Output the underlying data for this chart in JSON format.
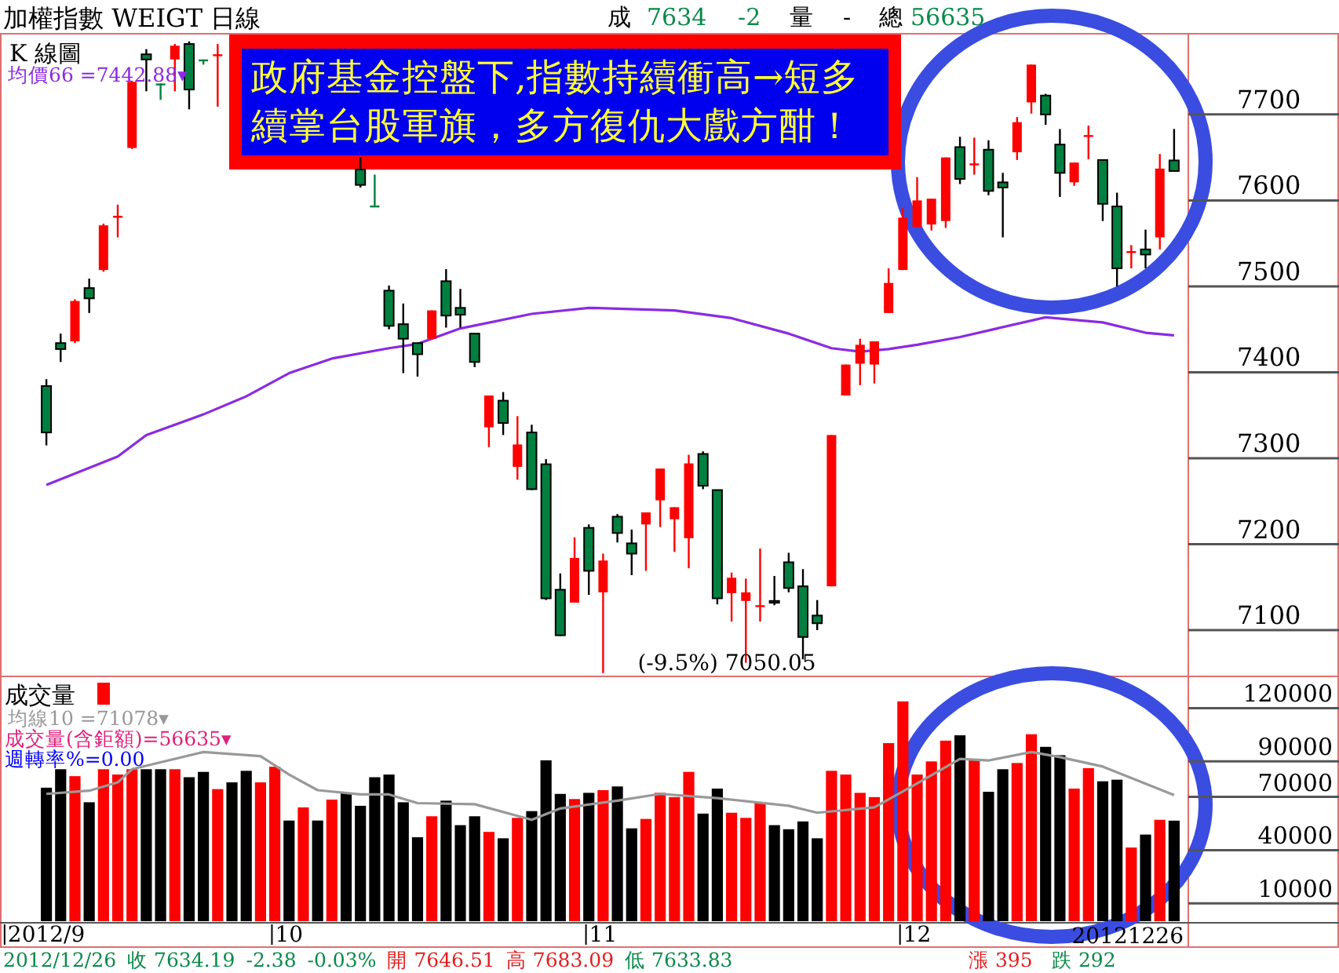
{
  "chart_data": [
    {
      "type": "candlestick",
      "title": "加權指數  WEIGT  日線",
      "subtitle": "K 線圖",
      "categories": [
        null,
        null,
        null,
        null,
        null,
        null,
        null,
        null,
        null,
        null,
        null,
        null,
        null,
        null,
        null,
        null,
        null,
        null,
        null,
        null,
        null,
        null,
        null,
        null,
        null,
        null,
        null,
        null,
        null,
        null,
        null,
        null,
        null,
        null,
        null,
        null,
        null,
        null,
        null,
        null,
        null,
        null,
        null,
        null,
        null,
        null,
        null,
        null,
        null,
        null,
        null,
        null,
        null,
        null,
        null,
        null,
        null,
        null,
        null,
        null,
        null,
        null,
        null,
        null,
        null,
        null,
        null,
        null,
        null,
        null,
        null,
        null,
        null,
        null,
        null,
        null,
        null,
        null,
        null,
        null
      ],
      "ohlc": [
        [
          7384,
          7392,
          7315,
          7330
        ],
        [
          7434,
          7445,
          7412,
          7427
        ],
        [
          7436,
          7485,
          7434,
          7483
        ],
        [
          7498,
          7509,
          7469,
          7486
        ],
        [
          7519,
          7573,
          7517,
          7571
        ],
        [
          7581,
          7595,
          7557,
          7582
        ],
        [
          7661,
          7739,
          7660,
          7738
        ],
        [
          7770,
          7776,
          7727,
          7764
        ],
        [
          7736,
          7736,
          7717,
          7736
        ],
        [
          7764,
          7782,
          7727,
          7780
        ],
        [
          7782,
          7785,
          7706,
          7729
        ],
        [
          7764,
          7764,
          7758,
          7764
        ],
        [
          7768,
          7782,
          7709,
          7770
        ],
        null,
        null,
        null,
        null,
        null,
        null,
        null,
        null,
        null,
        [
          7636,
          7650,
          7615,
          7618
        ],
        [
          7594,
          7630,
          7594,
          7594
        ],
        [
          7495,
          7501,
          7450,
          7454
        ],
        [
          7456,
          7480,
          7399,
          7439
        ],
        [
          7434,
          7434,
          7395,
          7421
        ],
        [
          7439,
          7472,
          7439,
          7472
        ],
        [
          7506,
          7520,
          7452,
          7466
        ],
        [
          7475,
          7497,
          7452,
          7467
        ],
        [
          7445,
          7445,
          7406,
          7412
        ],
        [
          7336,
          7373,
          7313,
          7373
        ],
        [
          7367,
          7377,
          7327,
          7341
        ],
        [
          7290,
          7349,
          7275,
          7316
        ],
        [
          7330,
          7339,
          7263,
          7264
        ],
        [
          7293,
          7299,
          7135,
          7137
        ],
        [
          7147,
          7166,
          7093,
          7094
        ],
        [
          7132,
          7208,
          7132,
          7184
        ],
        [
          7219,
          7223,
          7141,
          7169
        ],
        [
          7144,
          7189,
          7050.05,
          7181
        ],
        [
          7232,
          7235,
          7202,
          7213
        ],
        [
          7201,
          7217,
          7164,
          7189
        ],
        [
          7223,
          7237,
          7169,
          7237
        ],
        [
          7251,
          7288,
          7220,
          7288
        ],
        [
          7229,
          7243,
          7191,
          7243
        ],
        [
          7207,
          7304,
          7172,
          7294
        ],
        [
          7305,
          7308,
          7264,
          7268
        ],
        [
          7263,
          7263,
          7130,
          7137
        ],
        [
          7143,
          7167,
          7110,
          7161
        ],
        [
          7134,
          7160,
          7062,
          7144
        ],
        [
          7127,
          7195,
          7110,
          7129
        ],
        [
          7134,
          7163,
          7129,
          7132
        ],
        [
          7179,
          7190,
          7144,
          7149
        ],
        [
          7151,
          7171,
          7066,
          7092
        ],
        [
          7117,
          7135,
          7100,
          7108
        ],
        [
          7151,
          7327,
          7151,
          7327
        ],
        [
          7373,
          7409,
          7373,
          7409
        ],
        [
          7410,
          7439,
          7385,
          7432
        ],
        [
          7409,
          7436,
          7387,
          7436
        ],
        [
          7469,
          7521,
          7469,
          7504
        ],
        [
          7519,
          7591,
          7519,
          7580
        ],
        [
          7569,
          7627,
          7569,
          7600
        ],
        [
          7572,
          7602,
          7565,
          7602
        ],
        [
          7576,
          7650,
          7568,
          7650
        ],
        [
          7662,
          7674,
          7619,
          7625
        ],
        [
          7641,
          7673,
          7630,
          7643
        ],
        [
          7659,
          7670,
          7606,
          7611
        ],
        [
          7621,
          7632,
          7557,
          7615
        ],
        [
          7656,
          7697,
          7647,
          7691
        ],
        [
          7714,
          7758,
          7701,
          7758
        ],
        [
          7722,
          7724,
          7688,
          7700
        ],
        [
          7665,
          7683,
          7604,
          7632
        ],
        [
          7621,
          7644,
          7617,
          7644
        ],
        [
          7674,
          7687,
          7648,
          7676
        ],
        [
          7647,
          7647,
          7576,
          7596
        ],
        [
          7593,
          7609,
          7500,
          7521
        ],
        [
          7539,
          7548,
          7521,
          7541
        ],
        [
          7543,
          7566,
          7521,
          7537
        ],
        [
          7557,
          7654,
          7543,
          7637
        ],
        [
          7646.51,
          7683.09,
          7633.83,
          7634.19
        ]
      ],
      "colors": [
        "#008040",
        "#008040",
        "#ff0000",
        "#008040",
        "#ff0000",
        "#ff0000",
        "#ff0000",
        "#008040",
        "#008040",
        "#ff0000",
        "#008040",
        "#008040",
        "#ff0000",
        null,
        null,
        null,
        null,
        null,
        null,
        null,
        null,
        null,
        "#008040",
        "#008040",
        "#008040",
        "#008040",
        "#008040",
        "#ff0000",
        "#008040",
        "#008040",
        "#008040",
        "#ff0000",
        "#008040",
        "#ff0000",
        "#008040",
        "#008040",
        "#008040",
        "#ff0000",
        "#008040",
        "#ff0000",
        "#008040",
        "#008040",
        "#ff0000",
        "#ff0000",
        "#ff0000",
        "#ff0000",
        "#008040",
        "#008040",
        "#ff0000",
        "#ff0000",
        "#ff0000",
        "#008040",
        "#008040",
        "#008040",
        "#008040",
        "#ff0000",
        "#ff0000",
        "#ff0000",
        "#ff0000",
        "#ff0000",
        "#ff0000",
        "#ff0000",
        "#ff0000",
        "#ff0000",
        "#008040",
        "#ff0000",
        "#008040",
        "#008040",
        "#ff0000",
        "#ff0000",
        "#008040",
        "#008040",
        "#ff0000",
        "#ff0000",
        "#008040",
        "#008040",
        "#ff0000",
        "#008040",
        "#ff0000",
        "#008040"
      ],
      "series": [
        {
          "name": "均價66 =7442.88▾",
          "type": "line",
          "color": "#8a2be2",
          "values": [
            7269,
            null,
            null,
            null,
            null,
            7302,
            null,
            7327,
            null,
            null,
            null,
            7351,
            null,
            null,
            7372,
            null,
            null,
            7399,
            null,
            null,
            7416,
            null,
            null,
            null,
            7428,
            null,
            7433,
            null,
            null,
            7451,
            null,
            null,
            null,
            null,
            7468,
            null,
            null,
            null,
            7475,
            null,
            null,
            null,
            null,
            null,
            7472,
            null,
            null,
            null,
            7463,
            null,
            null,
            null,
            7445,
            null,
            null,
            7428,
            null,
            7424,
            null,
            7427,
            null,
            7432,
            null,
            null,
            7441,
            null,
            null,
            null,
            null,
            null,
            7464,
            null,
            null,
            null,
            7458,
            null,
            null,
            7446,
            null,
            7443
          ]
        }
      ],
      "ylim": [
        7048,
        7793
      ],
      "yticks": [
        7100,
        7200,
        7300,
        7400,
        7500,
        7600,
        7700
      ],
      "tick_labels": "y",
      "legend": "top left",
      "annotations": [
        "成",
        "7634",
        "-2",
        "量",
        "-",
        "總",
        "56635",
        "政府基金控盤下,指數持續衝高→短多續掌台股軍旗，多方復仇大戲方酣！",
        "(-9.5%) 7050.05"
      ]
    },
    {
      "type": "bar",
      "title": "成交量",
      "categories": [
        "2012/9",
        null,
        null,
        null,
        null,
        null,
        null,
        null,
        null,
        null,
        null,
        null,
        null,
        null,
        null,
        null,
        null,
        "10",
        null,
        null,
        null,
        null,
        null,
        null,
        null,
        null,
        null,
        null,
        null,
        null,
        null,
        null,
        null,
        null,
        null,
        null,
        null,
        null,
        null,
        "11",
        null,
        null,
        null,
        null,
        null,
        null,
        null,
        null,
        null,
        null,
        null,
        null,
        null,
        null,
        null,
        null,
        null,
        null,
        null,
        null,
        null,
        "12",
        null,
        null,
        null,
        null,
        null,
        null,
        null,
        null,
        null,
        null,
        null,
        null,
        null,
        null,
        null,
        null,
        null,
        null
      ],
      "series": [
        {
          "color": "#ff0000",
          "values": [
            75200,
            85600,
            81700,
            67000,
            85600,
            82600,
            85600,
            85600,
            85600,
            85600,
            81100,
            84100,
            74400,
            78200,
            84700,
            78200,
            87000,
            56700,
            64100,
            56700,
            68500,
            72300,
            65000,
            81100,
            82600,
            67000,
            47300,
            59100,
            67900,
            54100,
            59100,
            50300,
            46700,
            58200,
            62000,
            90600,
            71700,
            68800,
            72300,
            73800,
            75900,
            52300,
            57600,
            72300,
            69900,
            84100,
            60600,
            74700,
            61100,
            58200,
            67000,
            54100,
            51800,
            56200,
            46700,
            84700,
            82600,
            72300,
            69900,
            100300,
            123800,
            82600,
            90000,
            101700,
            104700,
            91400,
            72900,
            85600,
            89100,
            105300,
            98200,
            93500,
            74700,
            86200,
            78800,
            79700,
            41500,
            48800,
            57100,
            56635
          ],
          "colors": [
            "#000000",
            "#000000",
            "#ff0000",
            "#000000",
            "#ff0000",
            "#ff0000",
            "#ff0000",
            "#000000",
            "#000000",
            "#ff0000",
            "#000000",
            "#000000",
            "#ff0000",
            "#000000",
            "#000000",
            "#ff0000",
            "#ff0000",
            "#000000",
            "#ff0000",
            "#000000",
            "#ff0000",
            "#000000",
            "#000000",
            "#000000",
            "#000000",
            "#000000",
            "#000000",
            "#ff0000",
            "#000000",
            "#000000",
            "#000000",
            "#ff0000",
            "#000000",
            "#ff0000",
            "#000000",
            "#000000",
            "#000000",
            "#ff0000",
            "#000000",
            "#ff0000",
            "#000000",
            "#000000",
            "#ff0000",
            "#ff0000",
            "#ff0000",
            "#ff0000",
            "#000000",
            "#000000",
            "#ff0000",
            "#ff0000",
            "#ff0000",
            "#000000",
            "#000000",
            "#000000",
            "#000000",
            "#ff0000",
            "#ff0000",
            "#ff0000",
            "#ff0000",
            "#ff0000",
            "#ff0000",
            "#ff0000",
            "#ff0000",
            "#ff0000",
            "#000000",
            "#ff0000",
            "#000000",
            "#000000",
            "#ff0000",
            "#ff0000",
            "#000000",
            "#000000",
            "#ff0000",
            "#ff0000",
            "#000000",
            "#000000",
            "#ff0000",
            "#000000",
            "#ff0000",
            "#000000"
          ]
        },
        {
          "name": "均線10 =71078▾",
          "type": "line",
          "color": "#999999",
          "values": [
            71700,
            null,
            null,
            73500,
            null,
            78200,
            85600,
            null,
            null,
            null,
            null,
            95300,
            null,
            null,
            null,
            93000,
            null,
            82600,
            null,
            73800,
            null,
            null,
            71400,
            null,
            71400,
            null,
            66500,
            null,
            null,
            null,
            65900,
            null,
            null,
            null,
            57100,
            null,
            63500,
            null,
            null,
            null,
            67900,
            null,
            null,
            71700,
            null,
            null,
            null,
            69300,
            null,
            null,
            null,
            null,
            65000,
            null,
            61100,
            null,
            null,
            null,
            64100,
            null,
            null,
            77600,
            null,
            null,
            91400,
            null,
            90500,
            null,
            null,
            95300,
            null,
            92400,
            null,
            null,
            87100,
            null,
            null,
            null,
            null,
            71078
          ]
        }
      ],
      "ylim": [
        0,
        137000
      ],
      "yticks": [
        10000,
        40000,
        70000,
        90000,
        120000
      ],
      "legend": "top left",
      "annotations": [
        "成交量(含鉅額)=56635▾",
        "週轉率%=0.00",
        "2012/12/26",
        "收 7634.19",
        "-2.38",
        "-0.03%",
        "開 7646.51",
        "高 7683.09",
        "低 7633.83",
        "漲 395",
        "跌 292",
        "20121226"
      ]
    }
  ]
}
